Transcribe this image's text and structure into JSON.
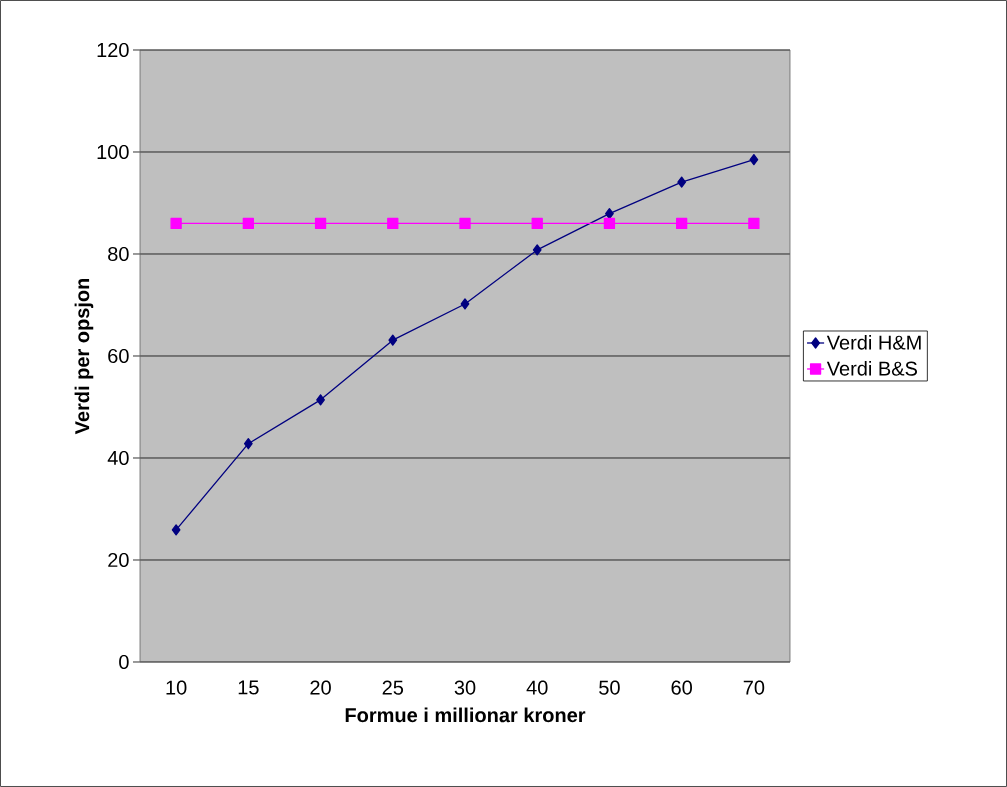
{
  "chart_data": {
    "type": "line",
    "xlabel": "Formue i millionar kroner",
    "ylabel": "Verdi per opsjon",
    "categories": [
      "10",
      "15",
      "20",
      "25",
      "30",
      "40",
      "50",
      "60",
      "70"
    ],
    "series": [
      {
        "name": "Verdi H&M",
        "color": "#000080",
        "marker": "diamond",
        "values": [
          25.9,
          42.8,
          51.4,
          63.1,
          70.2,
          80.8,
          87.9,
          94.1,
          98.5
        ]
      },
      {
        "name": "Verdi B&S",
        "color": "#ff00ff",
        "marker": "square",
        "values": [
          86,
          86,
          86,
          86,
          86,
          86,
          86,
          86,
          86
        ]
      }
    ],
    "ylim": [
      0,
      120
    ],
    "yticks": [
      0,
      20,
      40,
      60,
      80,
      100,
      120
    ],
    "grid": "y",
    "legend": "right"
  }
}
